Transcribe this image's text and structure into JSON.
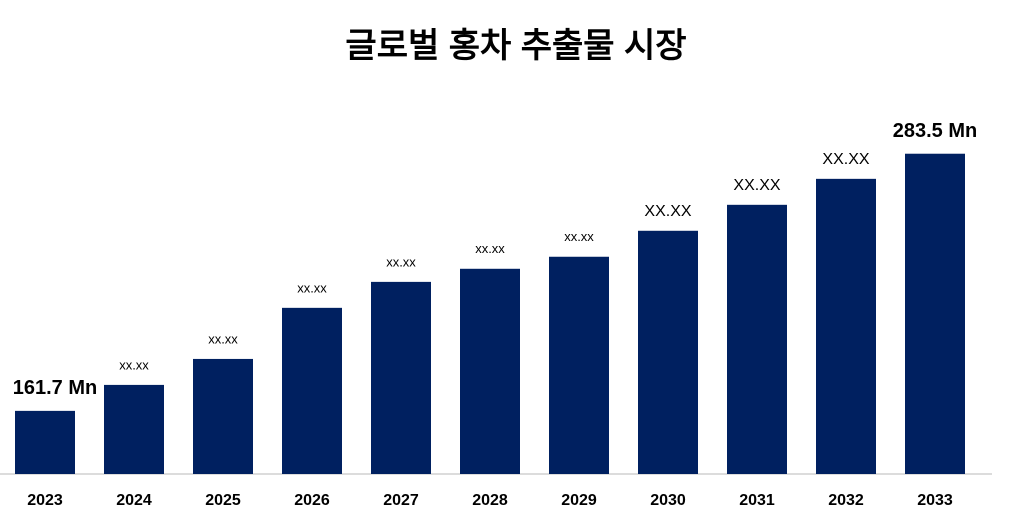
{
  "chart_data": {
    "type": "bar",
    "title": "글로벌 홍차 추출물 시장",
    "categories": [
      "2023",
      "2024",
      "2025",
      "2026",
      "2027",
      "2028",
      "2029",
      "2030",
      "2031",
      "2032",
      "2033"
    ],
    "values": [
      161.7,
      174.0,
      186.3,
      210.5,
      222.8,
      229.0,
      234.7,
      247.0,
      259.3,
      271.6,
      283.5
    ],
    "value_labels": [
      "161.7 Mn",
      "xx.xx",
      "xx.xx",
      "xx.xx",
      "xx.xx",
      "xx.xx",
      "xx.xx",
      "XX.XX",
      "XX.XX",
      "XX.XX",
      "283.5 Mn"
    ],
    "color": "#002060",
    "ylim": [
      131.8,
      290
    ]
  }
}
